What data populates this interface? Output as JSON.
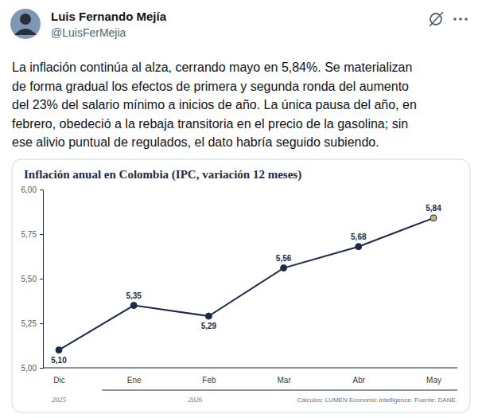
{
  "tweet": {
    "name": "Luis Fernando Mejía",
    "handle": "@LuisFerMejia",
    "text_lines": [
      "La inflación continúa al alza, cerrando mayo en 5,84%. Se materializan",
      "de forma gradual los efectos de primera y segunda ronda del aumento",
      "del 23% del salario mínimo a inicios de año. La única pausa del año, en",
      "febrero, obedeció a la rebaja transitoria en el precio de la gasolina; sin",
      "ese alivio puntual de regulados, el dato habría seguido subiendo."
    ]
  },
  "chart_data": {
    "type": "line",
    "title": "Inflación anual en Colombia (IPC, variación 12 meses)",
    "categories": [
      "Dic",
      "Ene",
      "Feb",
      "Mar",
      "Abr",
      "May"
    ],
    "annotations": [
      "2025",
      "2026"
    ],
    "source": "Cálculos: LUMEN Economic Intelligence. Fuente: DANE.",
    "values": [
      5.1,
      5.35,
      5.29,
      5.56,
      5.68,
      5.84
    ],
    "value_labels": [
      "5,10",
      "5,35",
      "5,29",
      "5,56",
      "5,68",
      "5,84"
    ],
    "color": "#1c2b4a",
    "colors": [
      "#1c2b4a",
      "#1c2b4a",
      "#1c2b4a",
      "#1c2b4a",
      "#1c2b4a",
      "#c9b07a"
    ],
    "marker": "circle",
    "data_labels": true,
    "grid": false,
    "ylim": [
      5,
      6
    ],
    "yticks": [
      {
        "value": 5,
        "label": "5,00"
      },
      {
        "value": 5.25,
        "label": "5,25"
      },
      {
        "value": 5.5,
        "label": "5,50"
      },
      {
        "value": 5.75,
        "label": "5,75"
      },
      {
        "value": 6,
        "label": "6,00"
      }
    ]
  }
}
